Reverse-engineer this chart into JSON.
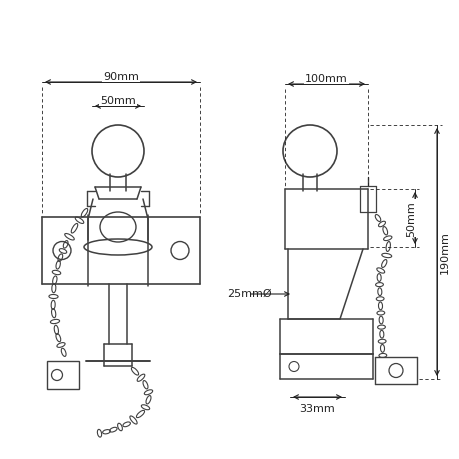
{
  "bg_color": "#ffffff",
  "line_color": "#404040",
  "dim_color": "#222222",
  "fig_width": 4.6,
  "fig_height": 4.6,
  "dpi": 100,
  "dims": {
    "left_90mm": "90mm",
    "left_50mm": "50mm",
    "right_100mm": "100mm",
    "right_190mm": "190mm",
    "right_50mm": "50mm",
    "mid_25mm": "25mmØ",
    "right_33mm": "33mm"
  }
}
